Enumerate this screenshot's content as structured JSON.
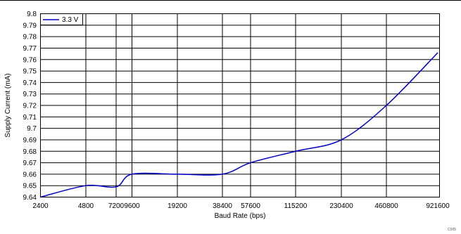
{
  "chart_data": {
    "type": "line",
    "xlabel": "Baud Rate (bps)",
    "ylabel": "Supply Current (mA)",
    "x_scale": "categorical",
    "x_ticks": [
      "2400",
      "4800",
      "7200",
      "9600",
      "19200",
      "38400",
      "57600",
      "115200",
      "230400",
      "460800",
      "921600"
    ],
    "ylim": [
      9.64,
      9.8
    ],
    "y_ticks": [
      "9.64",
      "9.65",
      "9.66",
      "9.67",
      "9.68",
      "9.69",
      "9.7",
      "9.71",
      "9.72",
      "9.73",
      "9.74",
      "9.75",
      "9.76",
      "9.77",
      "9.78",
      "9.79",
      "9.8"
    ],
    "grid": true,
    "legend_position": "top-left",
    "series": [
      {
        "name": "3.3 V",
        "color": "#0000cc",
        "points": [
          {
            "x": "2400",
            "y": 9.64
          },
          {
            "x": "4800",
            "y": 9.65
          },
          {
            "x": "7200",
            "y": 9.649
          },
          {
            "x": "9600",
            "y": 9.66
          },
          {
            "x": "19200",
            "y": 9.66
          },
          {
            "x": "38400",
            "y": 9.66
          },
          {
            "x": "57600",
            "y": 9.67
          },
          {
            "x": "115200",
            "y": 9.68
          },
          {
            "x": "230400",
            "y": 9.69
          },
          {
            "x": "460800",
            "y": 9.72
          },
          {
            "x": "921600",
            "y": 9.766
          }
        ]
      }
    ]
  },
  "figure_code": "C005"
}
